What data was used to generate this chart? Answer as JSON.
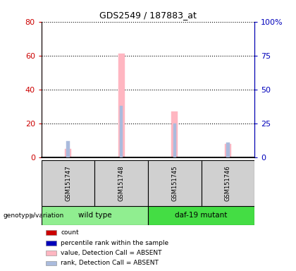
{
  "title": "GDS2549 / 187883_at",
  "samples": [
    "GSM151747",
    "GSM151748",
    "GSM151745",
    "GSM151746"
  ],
  "groups": [
    "wild type",
    "wild type",
    "daf-19 mutant",
    "daf-19 mutant"
  ],
  "wild_type_color": "#90EE90",
  "daf19_color": "#44DD44",
  "gray_color": "#D0D0D0",
  "value_absent": [
    5,
    61,
    27,
    8
  ],
  "rank_absent_pct": [
    12,
    38,
    25,
    11
  ],
  "ylim_left": [
    0,
    80
  ],
  "ylim_right": [
    0,
    100
  ],
  "yticks_left": [
    0,
    20,
    40,
    60,
    80
  ],
  "yticks_right": [
    0,
    25,
    50,
    75,
    100
  ],
  "ytick_labels_right": [
    "0",
    "25",
    "50",
    "75",
    "100%"
  ],
  "color_count": "#CC0000",
  "color_percentile": "#0000BB",
  "color_value_absent": "#FFB6C1",
  "color_rank_absent": "#AABBDD",
  "genotype_label": "genotype/variation",
  "legend_items": [
    {
      "label": "count",
      "color": "#CC0000"
    },
    {
      "label": "percentile rank within the sample",
      "color": "#0000BB"
    },
    {
      "label": "value, Detection Call = ABSENT",
      "color": "#FFB6C1"
    },
    {
      "label": "rank, Detection Call = ABSENT",
      "color": "#AABBDD"
    }
  ]
}
